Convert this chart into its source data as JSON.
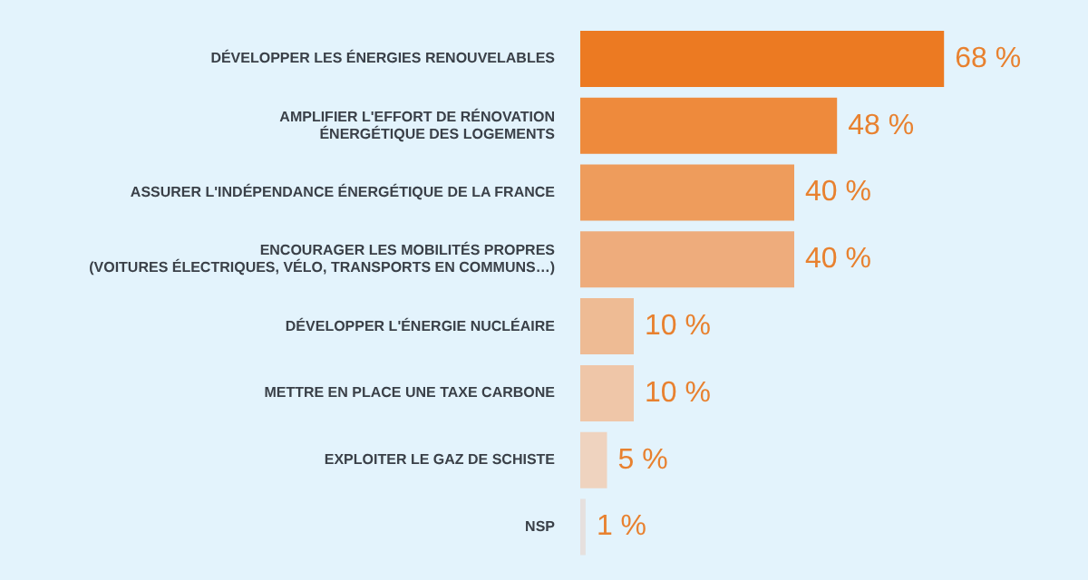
{
  "chart_data": {
    "type": "bar",
    "orientation": "horizontal",
    "categories": [
      "DÉVELOPPER LES ÉNERGIES RENOUVELABLES",
      "AMPLIFIER L'EFFORT DE RÉNOVATION\nÉNERGÉTIQUE DES LOGEMENTS",
      "ASSURER L'INDÉPENDANCE ÉNERGÉTIQUE DE LA FRANCE",
      "ENCOURAGER LES MOBILITÉS PROPRES\n(VOITURES ÉLECTRIQUES, VÉLO, TRANSPORTS EN COMMUNS…)",
      "DÉVELOPPER L'ÉNERGIE NUCLÉAIRE",
      "METTRE EN PLACE UNE TAXE CARBONE",
      "EXPLOITER LE GAZ DE SCHISTE",
      "NSP"
    ],
    "values": [
      68,
      48,
      40,
      40,
      10,
      10,
      5,
      1
    ],
    "colors": [
      "#ec7a22",
      "#ee8a3c",
      "#ee9c5c",
      "#eeac7c",
      "#eebb94",
      "#efc6a8",
      "#efd3bf",
      "#e6e0de"
    ],
    "value_labels": [
      "68 %",
      "48 %",
      "40 %",
      "40 %",
      "10 %",
      "10 %",
      "5 %",
      "1 %"
    ],
    "tick_labels": "y"
  }
}
